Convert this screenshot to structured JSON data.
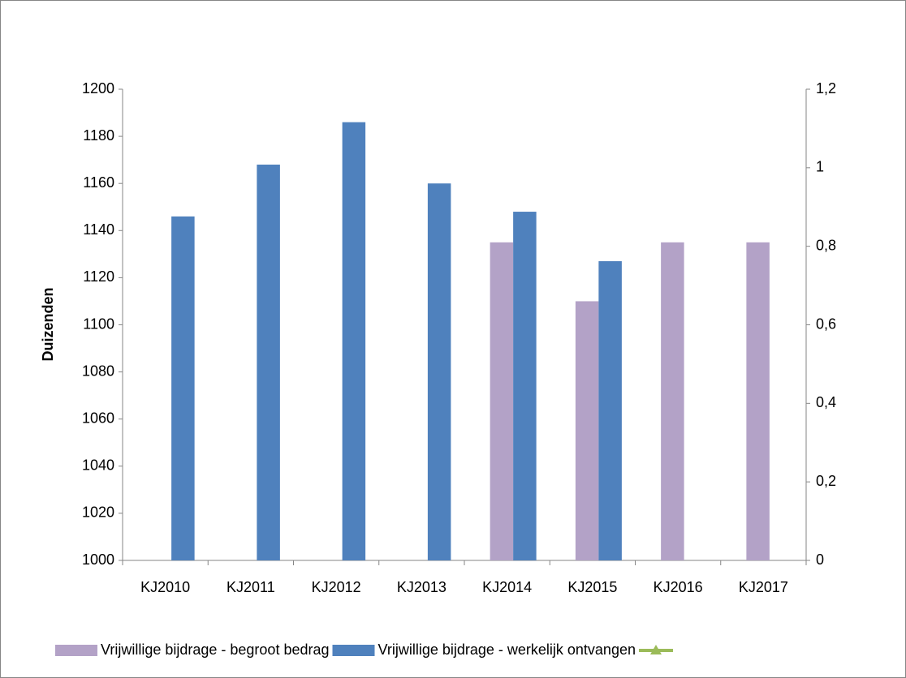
{
  "chart_data": {
    "type": "bar",
    "y_label": "Duizenden",
    "categories": [
      "KJ2010",
      "KJ2011",
      "KJ2012",
      "KJ2013",
      "KJ2014",
      "KJ2015",
      "KJ2016",
      "KJ2017"
    ],
    "series": [
      {
        "name": "Vrijwillige bijdrage - begroot bedrag",
        "color": "#b3a2c7",
        "values": [
          null,
          null,
          null,
          null,
          1135,
          1110,
          1135,
          1135
        ]
      },
      {
        "name": "Vrijwillige bijdrage - werkelijk ontvangen",
        "color": "#4f81bd",
        "values": [
          1146,
          1168,
          1186,
          1160,
          1148,
          1127,
          null,
          null
        ]
      },
      {
        "color": "#9bbb59",
        "axis": "y2",
        "values": [
          null,
          null,
          null,
          null,
          null,
          null,
          null,
          null
        ]
      }
    ],
    "ylim": [
      1000,
      1200
    ],
    "yticks": [
      1000,
      1020,
      1040,
      1060,
      1080,
      1100,
      1120,
      1140,
      1160,
      1180,
      1200
    ],
    "y2lim": [
      0,
      1.2
    ],
    "y2ticks": [
      0,
      {
        "value": 0.2,
        "label": "0,2"
      },
      {
        "value": 0.4,
        "label": "0,4"
      },
      {
        "value": 0.6,
        "label": "0,6"
      },
      {
        "value": 0.8,
        "label": "0,8"
      },
      1,
      {
        "value": 1.2,
        "label": "1,2"
      }
    ],
    "legend": "bottom"
  }
}
